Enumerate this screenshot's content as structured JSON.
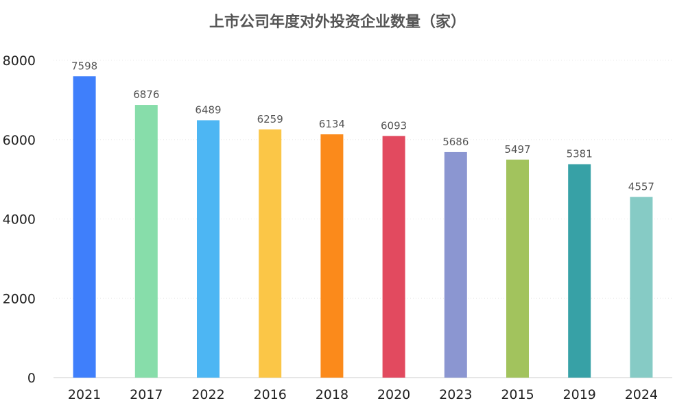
{
  "chart_data": {
    "type": "bar",
    "title": "上市公司年度对外投资企业数量（家）",
    "xlabel": "",
    "ylabel": "",
    "categories": [
      "2021",
      "2017",
      "2022",
      "2016",
      "2018",
      "2020",
      "2023",
      "2015",
      "2019",
      "2024"
    ],
    "values": [
      7598,
      6876,
      6489,
      6259,
      6134,
      6093,
      5686,
      5497,
      5381,
      4557
    ],
    "colors": [
      "#3f7ffb",
      "#87ddaa",
      "#4db6f3",
      "#fbc647",
      "#fb8a1b",
      "#e24a5f",
      "#8b96d1",
      "#a2c35d",
      "#37a1a6",
      "#86cbc5"
    ],
    "ylim": [
      0,
      8000
    ],
    "yticks": [
      0,
      2000,
      4000,
      6000,
      8000
    ],
    "grid": true,
    "legend": "none"
  }
}
